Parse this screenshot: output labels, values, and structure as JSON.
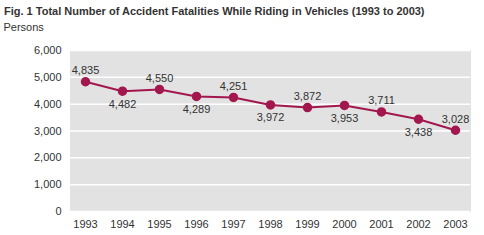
{
  "chart_data": {
    "type": "line",
    "title": "Fig. 1  Total Number of Accident Fatalities While Riding in Vehicles (1993 to 2003)",
    "y_label": "Persons",
    "categories": [
      "1993",
      "1994",
      "1995",
      "1996",
      "1997",
      "1998",
      "1999",
      "2000",
      "2001",
      "2002",
      "2003"
    ],
    "values": [
      4835,
      4482,
      4550,
      4289,
      4251,
      3972,
      3872,
      3953,
      3711,
      3438,
      3028
    ],
    "value_labels": [
      "4,835",
      "4,482",
      "4,550",
      "4,289",
      "4,251",
      "3,972",
      "3,872",
      "3,953",
      "3,711",
      "3,438",
      "3,028"
    ],
    "color": "#a3174f",
    "marker": "circle",
    "ylim": [
      0,
      6000
    ],
    "yticks": [
      0,
      {
        "value": 1000,
        "label": "1,000"
      },
      {
        "value": 2000,
        "label": "2,000"
      },
      {
        "value": 3000,
        "label": "3,000"
      },
      {
        "value": 4000,
        "label": "4,000"
      },
      {
        "value": 5000,
        "label": "5,000"
      },
      {
        "value": 6000,
        "label": "6,000"
      }
    ],
    "grid": true,
    "data_labels": true
  }
}
